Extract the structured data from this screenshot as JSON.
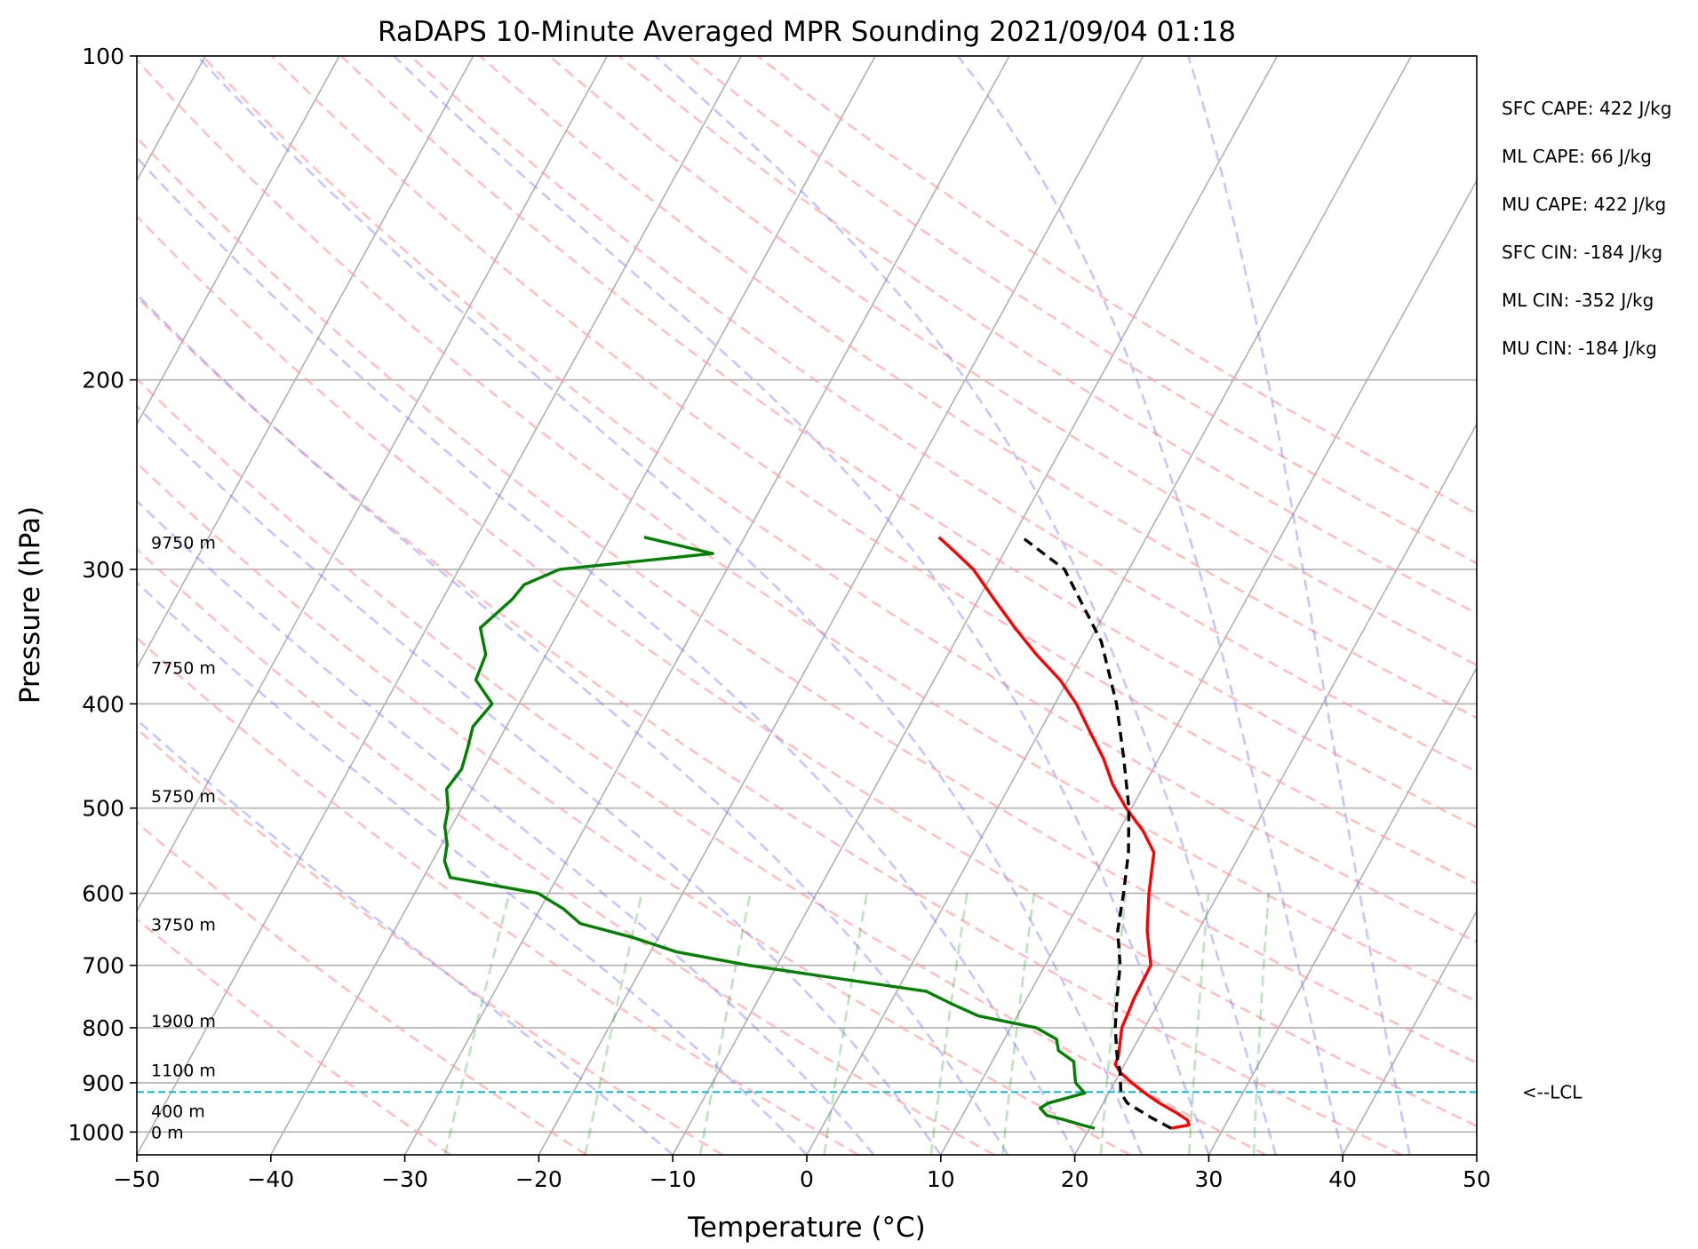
{
  "chart_data": {
    "type": "line",
    "title": "RaDAPS 10-Minute Averaged MPR Sounding 2021/09/04 01:18",
    "xlabel": "Temperature (°C)",
    "ylabel": "Pressure (hPa)",
    "xlim": [
      -50,
      50
    ],
    "ylim": [
      1050,
      100
    ],
    "y_scale": "log",
    "x_ticks": [
      -50,
      -40,
      -30,
      -20,
      -10,
      0,
      10,
      20,
      30,
      40,
      50
    ],
    "x_tick_labels": [
      "−50",
      "−40",
      "−30",
      "−20",
      "−10",
      "0",
      "10",
      "20",
      "30",
      "40",
      "50"
    ],
    "y_ticks": [
      100,
      200,
      300,
      400,
      500,
      600,
      700,
      800,
      900,
      1000
    ],
    "y_tick_labels": [
      "100",
      "200",
      "300",
      "400",
      "500",
      "600",
      "700",
      "800",
      "900",
      "1000"
    ],
    "grid": true,
    "series": [
      {
        "role": "temperature",
        "color": "#ff0000",
        "style": "solid",
        "points": [
          [
            992,
            26.1
          ],
          [
            985,
            27.3
          ],
          [
            975,
            27.0
          ],
          [
            960,
            25.9
          ],
          [
            940,
            24.2
          ],
          [
            920,
            22.7
          ],
          [
            900,
            21.3
          ],
          [
            880,
            20.0
          ],
          [
            865,
            19.3
          ],
          [
            850,
            19.2
          ],
          [
            800,
            18.3
          ],
          [
            750,
            18.0
          ],
          [
            700,
            17.9
          ],
          [
            650,
            16.2
          ],
          [
            600,
            14.8
          ],
          [
            550,
            13.5
          ],
          [
            525,
            11.8
          ],
          [
            500,
            9.6
          ],
          [
            475,
            7.6
          ],
          [
            450,
            5.9
          ],
          [
            425,
            3.8
          ],
          [
            400,
            1.6
          ],
          [
            380,
            -0.6
          ],
          [
            360,
            -3.4
          ],
          [
            340,
            -6.1
          ],
          [
            320,
            -8.8
          ],
          [
            300,
            -11.6
          ],
          [
            290,
            -13.5
          ],
          [
            280,
            -15.5
          ]
        ]
      },
      {
        "role": "dewpoint",
        "color": "#008000",
        "style": "solid",
        "points": [
          [
            992,
            20.4
          ],
          [
            985,
            19.3
          ],
          [
            975,
            17.9
          ],
          [
            965,
            16.3
          ],
          [
            950,
            15.5
          ],
          [
            940,
            15.9
          ],
          [
            920,
            18.2
          ],
          [
            900,
            17.1
          ],
          [
            880,
            16.6
          ],
          [
            860,
            16.1
          ],
          [
            840,
            14.5
          ],
          [
            820,
            13.9
          ],
          [
            800,
            11.9
          ],
          [
            780,
            7.1
          ],
          [
            760,
            4.6
          ],
          [
            740,
            2.2
          ],
          [
            720,
            -4.9
          ],
          [
            700,
            -12.1
          ],
          [
            680,
            -18.1
          ],
          [
            660,
            -21.8
          ],
          [
            640,
            -26.4
          ],
          [
            620,
            -28.3
          ],
          [
            600,
            -30.8
          ],
          [
            580,
            -38.0
          ],
          [
            560,
            -39.1
          ],
          [
            540,
            -39.6
          ],
          [
            520,
            -40.5
          ],
          [
            500,
            -41.0
          ],
          [
            480,
            -41.9
          ],
          [
            460,
            -41.6
          ],
          [
            440,
            -42.0
          ],
          [
            420,
            -42.5
          ],
          [
            400,
            -42.0
          ],
          [
            380,
            -44.2
          ],
          [
            360,
            -44.5
          ],
          [
            340,
            -46.0
          ],
          [
            320,
            -44.8
          ],
          [
            310,
            -44.5
          ],
          [
            300,
            -42.5
          ],
          [
            290,
            -31.7
          ],
          [
            280,
            -37.5
          ]
        ]
      },
      {
        "role": "parcel",
        "color": "#000000",
        "style": "dashed",
        "points": [
          [
            992,
            26.1
          ],
          [
            970,
            24.2
          ],
          [
            940,
            21.8
          ],
          [
            920,
            20.9
          ],
          [
            880,
            20.0
          ],
          [
            850,
            19.1
          ],
          [
            800,
            17.8
          ],
          [
            750,
            16.7
          ],
          [
            700,
            15.6
          ],
          [
            650,
            14.0
          ],
          [
            600,
            12.9
          ],
          [
            550,
            11.6
          ],
          [
            500,
            9.8
          ],
          [
            450,
            7.4
          ],
          [
            400,
            4.6
          ],
          [
            350,
            0.9
          ],
          [
            300,
            -4.8
          ],
          [
            280,
            -9.3
          ]
        ]
      }
    ],
    "isotherm_step": 10,
    "dry_adiabats_theta_c": [
      -30,
      -20,
      -10,
      0,
      10,
      20,
      30,
      40,
      50,
      60,
      70,
      80,
      90,
      100,
      110,
      120,
      130,
      140,
      150,
      160
    ],
    "moist_adiabats_start_c": [
      -10,
      0,
      5,
      10,
      15,
      20,
      25,
      30,
      35,
      40,
      45
    ],
    "mixing_ratio_lines_gkg": [
      0.4,
      1,
      2,
      4,
      7,
      10,
      16,
      24,
      32
    ],
    "lcl": {
      "pressure": 918,
      "label": "<--LCL",
      "color": "#17becf"
    },
    "height_labels": [
      {
        "text": "9750 m",
        "pressure": 283
      },
      {
        "text": "7750 m",
        "pressure": 370
      },
      {
        "text": "5750 m",
        "pressure": 487
      },
      {
        "text": "3750 m",
        "pressure": 641
      },
      {
        "text": "1900 m",
        "pressure": 788
      },
      {
        "text": "1100 m",
        "pressure": 876
      },
      {
        "text": "400 m",
        "pressure": 956
      },
      {
        "text": "0 m",
        "pressure": 1000
      }
    ],
    "stats": [
      "SFC CAPE: 422 J/kg",
      "ML CAPE: 66 J/kg",
      "MU CAPE: 422 J/kg",
      "SFC CIN: -184 J/kg",
      "ML CIN: -352 J/kg",
      "MU CIN: -184 J/kg"
    ]
  }
}
